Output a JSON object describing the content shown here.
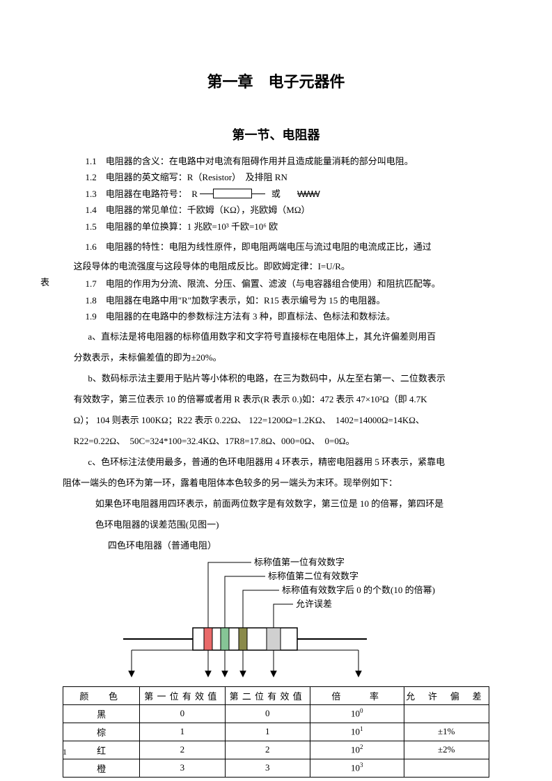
{
  "chapter_title": "第一章　电子元器件",
  "section_title": "第一节、电阻器",
  "lines": {
    "l1": "1.1　电阻器的含义：在电路中对电流有阻碍作用并且造成能量消耗的部分叫电阻。",
    "l2": "1.2　电阻器的英文缩写：R（Resistor）　及排阻 RN",
    "l3a": "1.3　电阻器在电路符号：　R",
    "l3b": "或",
    "l3c": "WWW",
    "l4": "1.4　电阻器的常见单位：千欧姆（KΩ），兆欧姆（MΩ）",
    "l5": "1.5　电阻器的单位换算：1 兆欧=10³ 千欧=10⁶ 欧",
    "l6": "1.6　电阻器的特性：电阻为线性原件，即电阻两端电压与流过电阻的电流成正比，通过",
    "l6b": "这段导体的电流强度与这段导体的电阻成反比。即欧姆定律：I=U/R。",
    "side": "表",
    "l7": "1.7　电阻的作用为分流、限流、分压、偏置、滤波（与电容器组合使用）和阻抗匹配等。",
    "l8": "1.8　电阻器在电路中用\"R\"加数字表示，如：R15 表示编号为 15 的电阻器。",
    "l9": "1.9　电阻器的在电路中的参数标注方法有 3 种，即直标法、色标法和数标法。",
    "pa": "a、直标法是将电阻器的标称值用数字和文字符号直接标在电阻体上，其允许偏差则用百",
    "pa2": "分数表示，未标偏差值的即为±20%。",
    "pb": "b、数码标示法主要用于贴片等小体积的电路，在三为数码中，从左至右第一、二位数表示",
    "pb2": "有效数字，第三位表示 10 的倍幂或者用 R 表示(R 表示 0.)如：472 表示 47×10²Ω（即 4.7K",
    "pb3": "Ω）； 104 则表示 100KΩ；R22 表示 0.22Ω、 122=1200Ω=1.2KΩ、　1402=14000Ω=14KΩ、",
    "pb4": "R22=0.22Ω、　50C=324*100=32.4KΩ、17R8=17.8Ω、000=0Ω、　0=0Ω。",
    "pc": "c、色环标注法使用最多，普通的色环电阻器用 4 环表示，精密电阻器用 5 环表示，紧靠电",
    "pc2": "阻体一端头的色环为第一环，露着电阻体本色较多的另一端头为末环。现举例如下：",
    "pc3": "如果色环电阻器用四环表示，前面两位数字是有效数字，第三位是 10 的倍幂，第四环是",
    "pc4": "色环电阻器的误差范围(见图一)"
  },
  "diagram": {
    "caption": "四色环电阻器（普通电阻）",
    "labels": {
      "band1": "标称值第一位有效数字",
      "band2": "标称值第二位有效数字",
      "band3": "标称值有效数字后 0 的个数(10 的倍幂)",
      "band4": "允许误差"
    },
    "body_color": "#ffffff",
    "body_stroke": "#000000",
    "lead_color": "#000000",
    "band_colors": [
      "#e96a6a",
      "#86c596",
      "#8a8a4a",
      "#d0d0d0"
    ],
    "band_stroke": "#000000",
    "arrow_color": "#000000"
  },
  "table": {
    "headers": [
      "颜　色",
      "第一位有效值",
      "第二位有效值",
      "倍　　率",
      "允 许 偏 差"
    ],
    "rows": [
      {
        "color": "黑",
        "d1": "0",
        "d2": "0",
        "mult": "10",
        "mult_exp": "0",
        "tol": ""
      },
      {
        "color": "棕",
        "d1": "1",
        "d2": "1",
        "mult": "10",
        "mult_exp": "1",
        "tol": "±1%"
      },
      {
        "color": "红",
        "d1": "2",
        "d2": "2",
        "mult": "10",
        "mult_exp": "2",
        "tol": "±2%"
      },
      {
        "color": "橙",
        "d1": "3",
        "d2": "3",
        "mult": "10",
        "mult_exp": "3",
        "tol": ""
      }
    ],
    "col_widths": [
      "18%",
      "20%",
      "20%",
      "22%",
      "20%"
    ]
  },
  "page_number": "1"
}
